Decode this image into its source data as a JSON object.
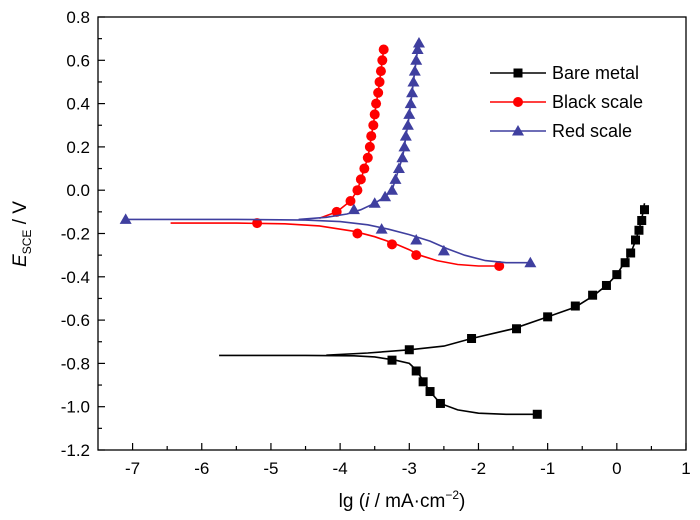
{
  "chart_data": {
    "type": "line",
    "title": "",
    "xlabel": {
      "prefix": "lg (",
      "symbol": "i",
      "unit": " / mA·cm",
      "exponent": "−2",
      "suffix": ")"
    },
    "ylabel": {
      "symbol": "E",
      "subscript": "SCE",
      "unit": " / V"
    },
    "xlim": [
      -7.5,
      1
    ],
    "ylim": [
      -1.2,
      0.8
    ],
    "xticks": [
      -7,
      -6,
      -5,
      -4,
      -3,
      -2,
      -1,
      0,
      1
    ],
    "xtick_labels": [
      "-7",
      "-6",
      "-5",
      "-4",
      "-3",
      "-2",
      "-1",
      "0",
      "1"
    ],
    "yticks": [
      -1.2,
      -1.0,
      -0.8,
      -0.6,
      -0.4,
      -0.2,
      0.0,
      0.2,
      0.4,
      0.6,
      0.8
    ],
    "ytick_labels": [
      "-1.2",
      "-1.0",
      "-0.8",
      "-0.6",
      "-0.4",
      "-0.2",
      "0.0",
      "0.2",
      "0.4",
      "0.6",
      "0.8"
    ],
    "grid": false,
    "legend_position": "top-right",
    "series": [
      {
        "name": "Bare metal",
        "color": "#000000",
        "marker": "square",
        "line": [
          [
            -5.75,
            -0.763
          ],
          [
            -4.5,
            -0.763
          ],
          [
            -3.8,
            -0.765
          ],
          [
            -3.5,
            -0.77
          ],
          [
            -3.2,
            -0.785
          ],
          [
            -3.0,
            -0.8
          ],
          [
            -2.9,
            -0.83
          ],
          [
            -2.8,
            -0.88
          ],
          [
            -2.7,
            -0.93
          ],
          [
            -2.55,
            -0.985
          ],
          [
            -2.3,
            -1.015
          ],
          [
            -2.0,
            -1.03
          ],
          [
            -1.6,
            -1.035
          ],
          [
            -1.15,
            -1.035
          ]
        ],
        "line2": [
          [
            -4.2,
            -0.762
          ],
          [
            -3.6,
            -0.752
          ],
          [
            -3.0,
            -0.737
          ],
          [
            -2.5,
            -0.72
          ],
          [
            -2.1,
            -0.685
          ],
          [
            -1.5,
            -0.64
          ],
          [
            -1.0,
            -0.585
          ],
          [
            -0.6,
            -0.54
          ],
          [
            -0.35,
            -0.49
          ],
          [
            -0.15,
            -0.44
          ],
          [
            0.0,
            -0.39
          ],
          [
            0.12,
            -0.33
          ],
          [
            0.2,
            -0.29
          ],
          [
            0.27,
            -0.235
          ],
          [
            0.32,
            -0.18
          ],
          [
            0.36,
            -0.135
          ],
          [
            0.4,
            -0.06
          ]
        ],
        "points": [
          [
            -3.25,
            -0.785
          ],
          [
            -2.9,
            -0.835
          ],
          [
            -2.8,
            -0.885
          ],
          [
            -2.7,
            -0.93
          ],
          [
            -2.55,
            -0.985
          ],
          [
            -1.15,
            -1.035
          ],
          [
            -3.0,
            -0.737
          ],
          [
            -2.1,
            -0.685
          ],
          [
            -1.45,
            -0.64
          ],
          [
            -1.0,
            -0.585
          ],
          [
            -0.6,
            -0.535
          ],
          [
            -0.35,
            -0.485
          ],
          [
            -0.15,
            -0.44
          ],
          [
            0.0,
            -0.39
          ],
          [
            0.12,
            -0.335
          ],
          [
            0.2,
            -0.29
          ],
          [
            0.27,
            -0.23
          ],
          [
            0.32,
            -0.185
          ],
          [
            0.36,
            -0.14
          ],
          [
            0.4,
            -0.09
          ]
        ]
      },
      {
        "name": "Black scale",
        "color": "#ff0000",
        "marker": "circle",
        "line": [
          [
            -6.45,
            -0.152
          ],
          [
            -5.5,
            -0.152
          ],
          [
            -4.8,
            -0.155
          ],
          [
            -4.3,
            -0.165
          ],
          [
            -3.8,
            -0.19
          ],
          [
            -3.5,
            -0.215
          ],
          [
            -3.2,
            -0.248
          ],
          [
            -3.0,
            -0.275
          ],
          [
            -2.85,
            -0.3
          ],
          [
            -2.6,
            -0.325
          ],
          [
            -2.3,
            -0.343
          ],
          [
            -2.0,
            -0.35
          ],
          [
            -1.7,
            -0.35
          ]
        ],
        "line2": [
          [
            -4.3,
            -0.13
          ],
          [
            -4.05,
            -0.1
          ],
          [
            -3.85,
            -0.05
          ],
          [
            -3.75,
            0.0
          ],
          [
            -3.7,
            0.05
          ],
          [
            -3.65,
            0.1
          ],
          [
            -3.6,
            0.15
          ],
          [
            -3.57,
            0.2
          ],
          [
            -3.55,
            0.25
          ],
          [
            -3.52,
            0.3
          ],
          [
            -3.5,
            0.35
          ],
          [
            -3.48,
            0.4
          ],
          [
            -3.45,
            0.45
          ],
          [
            -3.43,
            0.5
          ],
          [
            -3.41,
            0.55
          ],
          [
            -3.39,
            0.6
          ],
          [
            -3.37,
            0.65
          ]
        ],
        "points": [
          [
            -5.2,
            -0.152
          ],
          [
            -3.75,
            -0.2
          ],
          [
            -3.25,
            -0.25
          ],
          [
            -2.9,
            -0.3
          ],
          [
            -1.7,
            -0.35
          ],
          [
            -4.05,
            -0.1
          ],
          [
            -3.85,
            -0.05
          ],
          [
            -3.75,
            0.0
          ],
          [
            -3.7,
            0.05
          ],
          [
            -3.65,
            0.1
          ],
          [
            -3.6,
            0.15
          ],
          [
            -3.57,
            0.2
          ],
          [
            -3.55,
            0.25
          ],
          [
            -3.52,
            0.3
          ],
          [
            -3.5,
            0.35
          ],
          [
            -3.48,
            0.4
          ],
          [
            -3.45,
            0.45
          ],
          [
            -3.43,
            0.5
          ],
          [
            -3.41,
            0.55
          ],
          [
            -3.39,
            0.6
          ],
          [
            -3.37,
            0.65
          ]
        ]
      },
      {
        "name": "Red scale",
        "color": "#3f3f9f",
        "marker": "triangle",
        "line": [
          [
            -7.1,
            -0.135
          ],
          [
            -5.5,
            -0.135
          ],
          [
            -4.5,
            -0.138
          ],
          [
            -4.0,
            -0.145
          ],
          [
            -3.6,
            -0.16
          ],
          [
            -3.3,
            -0.18
          ],
          [
            -3.0,
            -0.205
          ],
          [
            -2.7,
            -0.235
          ],
          [
            -2.45,
            -0.27
          ],
          [
            -2.2,
            -0.3
          ],
          [
            -1.9,
            -0.325
          ],
          [
            -1.6,
            -0.335
          ],
          [
            -1.25,
            -0.335
          ]
        ],
        "line2": [
          [
            -4.6,
            -0.135
          ],
          [
            -4.2,
            -0.125
          ],
          [
            -3.9,
            -0.11
          ],
          [
            -3.7,
            -0.09
          ],
          [
            -3.5,
            -0.06
          ],
          [
            -3.35,
            -0.03
          ],
          [
            -3.25,
            0.0
          ],
          [
            -3.2,
            0.05
          ],
          [
            -3.15,
            0.1
          ],
          [
            -3.1,
            0.15
          ],
          [
            -3.07,
            0.2
          ],
          [
            -3.05,
            0.25
          ],
          [
            -3.02,
            0.3
          ],
          [
            -3.0,
            0.35
          ],
          [
            -2.98,
            0.4
          ],
          [
            -2.96,
            0.45
          ],
          [
            -2.94,
            0.5
          ],
          [
            -2.92,
            0.55
          ],
          [
            -2.9,
            0.6
          ],
          [
            -2.88,
            0.65
          ],
          [
            -2.86,
            0.68
          ]
        ],
        "points": [
          [
            -7.1,
            -0.135
          ],
          [
            -3.4,
            -0.18
          ],
          [
            -2.9,
            -0.23
          ],
          [
            -2.5,
            -0.28
          ],
          [
            -1.25,
            -0.335
          ],
          [
            -3.8,
            -0.09
          ],
          [
            -3.5,
            -0.06
          ],
          [
            -3.35,
            -0.03
          ],
          [
            -3.25,
            0.0
          ],
          [
            -3.2,
            0.05
          ],
          [
            -3.15,
            0.1
          ],
          [
            -3.1,
            0.15
          ],
          [
            -3.07,
            0.2
          ],
          [
            -3.05,
            0.25
          ],
          [
            -3.02,
            0.3
          ],
          [
            -3.0,
            0.35
          ],
          [
            -2.98,
            0.4
          ],
          [
            -2.96,
            0.45
          ],
          [
            -2.94,
            0.5
          ],
          [
            -2.92,
            0.55
          ],
          [
            -2.9,
            0.6
          ],
          [
            -2.88,
            0.65
          ],
          [
            -2.86,
            0.68
          ]
        ]
      }
    ]
  }
}
